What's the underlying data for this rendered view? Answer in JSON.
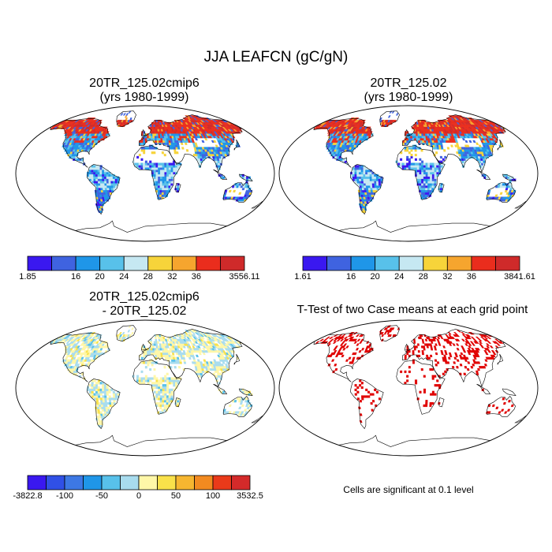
{
  "title": "JJA LEAFCN (gC/gN)",
  "panels": [
    {
      "id": "p1",
      "title_line1": "20TR_125.02cmip6",
      "title_line2": "(yrs 1980-1999)"
    },
    {
      "id": "p2",
      "title_line1": "20TR_125.02",
      "title_line2": "(yrs 1980-1999)"
    },
    {
      "id": "p3",
      "title_line1": "20TR_125.02cmip6",
      "title_line2": "- 20TR_125.02"
    },
    {
      "id": "p4",
      "title_line1": "T-Test of two Case means at each grid point",
      "title_line2": ""
    }
  ],
  "colorbars": {
    "cb1": {
      "colors": [
        "#3a18f0",
        "#3f63e0",
        "#1f96e8",
        "#58c1ea",
        "#c6e8f2",
        "#f7d43a",
        "#f6a52e",
        "#ea2d1d",
        "#cf2a2a"
      ],
      "labels": [
        {
          "text": "1.85",
          "pos": 0
        },
        {
          "text": "16",
          "pos": 2
        },
        {
          "text": "20",
          "pos": 3
        },
        {
          "text": "24",
          "pos": 4
        },
        {
          "text": "28",
          "pos": 5
        },
        {
          "text": "32",
          "pos": 6
        },
        {
          "text": "36",
          "pos": 7
        },
        {
          "text": "3556.11",
          "pos": 9
        }
      ]
    },
    "cb2": {
      "colors": [
        "#3a18f0",
        "#3f63e0",
        "#1f96e8",
        "#58c1ea",
        "#c6e8f2",
        "#f7d43a",
        "#f6a52e",
        "#ea2d1d",
        "#cf2a2a"
      ],
      "labels": [
        {
          "text": "1.61",
          "pos": 0
        },
        {
          "text": "16",
          "pos": 2
        },
        {
          "text": "20",
          "pos": 3
        },
        {
          "text": "24",
          "pos": 4
        },
        {
          "text": "28",
          "pos": 5
        },
        {
          "text": "32",
          "pos": 6
        },
        {
          "text": "36",
          "pos": 7
        },
        {
          "text": "3841.61",
          "pos": 9
        }
      ]
    },
    "cb3": {
      "colors": [
        "#3a18f0",
        "#3050e6",
        "#3d78e4",
        "#1f96e8",
        "#58c1ea",
        "#a8dcee",
        "#fff7a8",
        "#f9e14a",
        "#f6b630",
        "#f28a20",
        "#ea3a1a",
        "#d42a2a"
      ],
      "labels": [
        {
          "text": "-3822.8",
          "pos": 0
        },
        {
          "text": "-100",
          "pos": 2
        },
        {
          "text": "-50",
          "pos": 4
        },
        {
          "text": "0",
          "pos": 6
        },
        {
          "text": "50",
          "pos": 8
        },
        {
          "text": "100",
          "pos": 10
        },
        {
          "text": "3532.5",
          "pos": 12
        }
      ]
    }
  },
  "ttest_note": "Cells are significant at 0.1 level",
  "colors": {
    "land_outline": "#000000",
    "significant_cell": "#e00000"
  }
}
